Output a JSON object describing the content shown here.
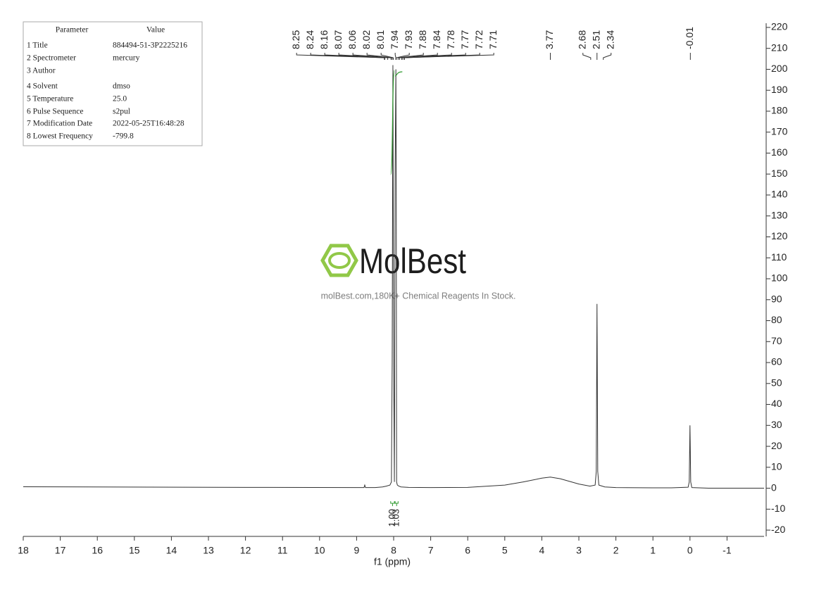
{
  "chart_data": {
    "type": "nmr",
    "x_label": "f1 (ppm)",
    "xlim": [
      18,
      -2
    ],
    "xticks": [
      18,
      17,
      16,
      15,
      14,
      13,
      12,
      11,
      10,
      9,
      8,
      7,
      6,
      5,
      4,
      3,
      2,
      1,
      0,
      -1
    ],
    "ylim": [
      -23,
      222
    ],
    "yticks": [
      -20,
      -10,
      0,
      10,
      20,
      30,
      40,
      50,
      60,
      70,
      80,
      90,
      100,
      110,
      120,
      130,
      140,
      150,
      160,
      170,
      180,
      190,
      200,
      210,
      220
    ],
    "color": "#333333",
    "x": [
      18,
      12,
      9,
      8.8,
      8.78,
      8.76,
      8.5,
      8.3,
      8.2,
      8.1,
      8.06,
      8.04,
      8.02,
      8,
      7.98,
      7.96,
      7.94,
      7.93,
      7.92,
      7.9,
      7.86,
      7.8,
      7.6,
      7,
      6,
      5,
      4.5,
      4,
      3.77,
      3.5,
      3,
      2.7,
      2.56,
      2.53,
      2.51,
      2.49,
      2.46,
      2.3,
      2,
      1,
      0.5,
      0.05,
      0.02,
      0,
      -0.02,
      -0.05,
      -0.5,
      -2
    ],
    "values": [
      0.7,
      0.4,
      0.3,
      0.3,
      1.5,
      0.3,
      0.3,
      0.6,
      1,
      1.5,
      3,
      60,
      202,
      60,
      3,
      150,
      200,
      150,
      3,
      1.5,
      1,
      0.6,
      0.4,
      0.3,
      0.4,
      1.5,
      3,
      4.8,
      5.3,
      4.5,
      2,
      1,
      1.5,
      8,
      88,
      8,
      1.5,
      0.6,
      0.3,
      0.2,
      0.2,
      0.5,
      3,
      30,
      3,
      0.3,
      0,
      0
    ],
    "peaks": [
      8.25,
      8.24,
      8.16,
      8.07,
      8.06,
      8.02,
      8.01,
      7.94,
      7.93,
      7.88,
      7.84,
      7.78,
      7.77,
      7.72,
      7.71,
      3.77,
      2.68,
      2.51,
      2.34,
      -0.01
    ],
    "integral_color": "#2e9a2e",
    "integrals": [
      {
        "from": 8.08,
        "to": 7.98,
        "value": 1,
        "label": "1.00"
      },
      {
        "from": 7.96,
        "to": 7.88,
        "value": 1.03,
        "label": "1.03"
      }
    ]
  },
  "parameters": {
    "header": [
      "Parameter",
      "Value"
    ],
    "rows": [
      [
        "1 Title",
        "884494-51-3P2225216"
      ],
      [
        "2 Spectrometer",
        "mercury"
      ],
      [
        "3 Author"
      ],
      [
        "4 Solvent",
        "dmso"
      ],
      [
        "5 Temperature",
        "25.0"
      ],
      [
        "6 Pulse Sequence",
        "s2pul"
      ],
      [
        "7 Modification Date",
        "2022-05-25T16:48:28"
      ],
      [
        "8 Lowest Frequency",
        "-799.8"
      ]
    ]
  },
  "watermark": {
    "brand": "MolBest",
    "tagline": "molBest.com,180K+ Chemical Reagents In Stock."
  }
}
